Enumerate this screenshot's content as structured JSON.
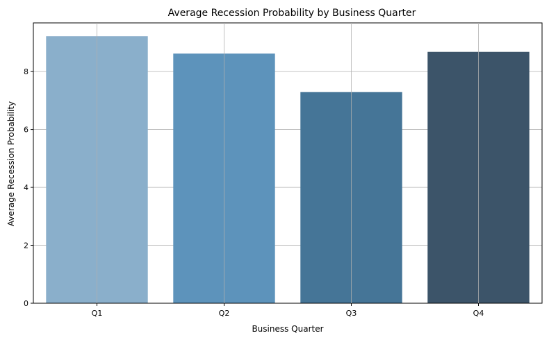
{
  "chart_data": {
    "type": "bar",
    "title": "Average Recession Probability by Business Quarter",
    "xlabel": "Business Quarter",
    "ylabel": "Average Recession Probability",
    "categories": [
      "Q1",
      "Q2",
      "Q3",
      "Q4"
    ],
    "values": [
      9.22,
      8.62,
      7.29,
      8.68
    ],
    "ylim": [
      0,
      9.68
    ],
    "yticks": [
      0,
      2,
      4,
      6,
      8
    ],
    "grid": true,
    "legend": "none",
    "colors": [
      "#8aafcb",
      "#5d93bb",
      "#457597",
      "#3c5469"
    ]
  }
}
